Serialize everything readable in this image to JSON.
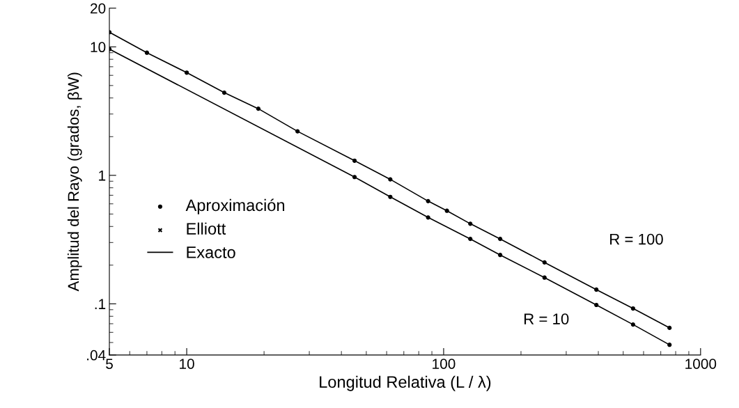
{
  "chart_data": {
    "type": "line",
    "xlabel": "Longitud Relativa (L / λ)",
    "ylabel": "Amplitud del Rayo (grados, βW)",
    "log": "xy",
    "xlim": [
      5,
      1000
    ],
    "ylim": [
      0.04,
      20
    ],
    "xticks": [
      5,
      10,
      100,
      1000
    ],
    "yticks": [
      {
        "value": 0.04,
        "label": ".04"
      },
      {
        "value": 0.1,
        "label": ".1"
      },
      1,
      10,
      20
    ],
    "grid": false,
    "legend": "center left",
    "series": [
      {
        "name": "Aproximación",
        "type": "scatter",
        "marker": "circle",
        "color": "#000000",
        "x": [
          5,
          7,
          10,
          14,
          19,
          27,
          45,
          62,
          87,
          103,
          127,
          166,
          247,
          393,
          546,
          757
        ],
        "values": [
          13,
          9.0,
          6.3,
          4.4,
          3.3,
          2.2,
          1.3,
          0.93,
          0.63,
          0.53,
          0.42,
          0.32,
          0.21,
          0.129,
          0.092,
          0.065
        ]
      },
      {
        "type": "scatter",
        "marker": "circle",
        "color": "#000000",
        "x": [
          5,
          45,
          62,
          87,
          127,
          166,
          247,
          393,
          546,
          757
        ],
        "values": [
          9.6,
          0.97,
          0.68,
          0.47,
          0.32,
          0.24,
          0.16,
          0.098,
          0.069,
          0.048
        ]
      },
      {
        "name": "Elliott",
        "type": "scatter",
        "marker": "cross",
        "color": "#000000"
      },
      {
        "name": "Exacto",
        "line_style": "solid",
        "color": "#000000",
        "x": [
          5,
          7,
          10,
          14,
          19,
          27,
          45,
          62,
          87,
          103,
          127,
          166,
          247,
          393,
          546,
          757
        ],
        "values": [
          13,
          9.0,
          6.3,
          4.4,
          3.3,
          2.2,
          1.3,
          0.93,
          0.63,
          0.53,
          0.42,
          0.32,
          0.21,
          0.129,
          0.092,
          0.065
        ]
      },
      {
        "line_style": "solid",
        "color": "#000000",
        "x": [
          5,
          45,
          62,
          87,
          127,
          166,
          247,
          393,
          546,
          757
        ],
        "values": [
          9.6,
          0.97,
          0.68,
          0.47,
          0.32,
          0.24,
          0.16,
          0.098,
          0.069,
          0.048
        ]
      }
    ],
    "annotations": [
      "R = 100",
      "R = 10"
    ]
  }
}
